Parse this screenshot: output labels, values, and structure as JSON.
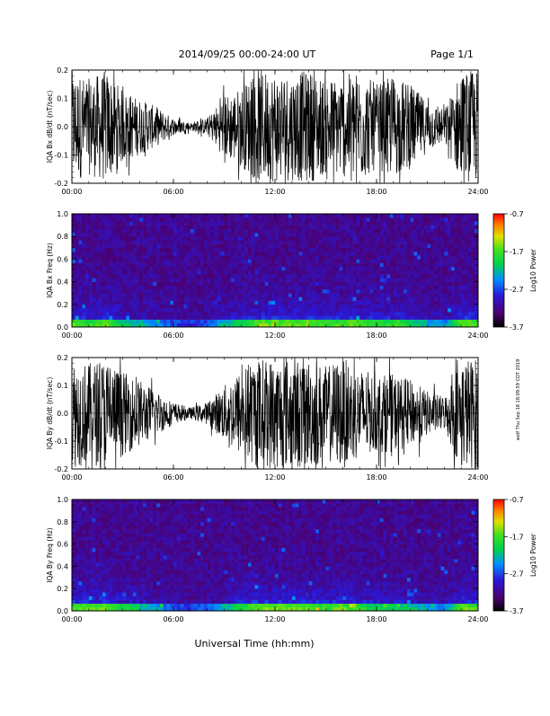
{
  "header": {
    "title": "2014/09/25  00:00-24:00 UT",
    "page": "Page 1/1"
  },
  "side_note": "wolf Thu Sep 18 18:09:59 CDT 2019",
  "xlabel": "Universal Time (hh:mm)",
  "chart_data": [
    {
      "type": "line",
      "ylabel": "IQA Bx dB/dt (nT/sec)",
      "xlim": [
        0,
        24
      ],
      "ylim": [
        -0.2,
        0.2
      ],
      "xticks": [
        "00:00",
        "06:00",
        "12:00",
        "18:00",
        "24:00"
      ],
      "yticks": [
        "-0.2",
        "-0.1",
        "0.0",
        "0.1",
        "0.2"
      ],
      "series": [
        {
          "x": [
            0,
            1,
            2,
            3,
            4,
            5,
            6,
            7,
            8,
            9,
            10,
            11,
            12,
            13,
            14,
            15,
            16,
            17,
            18,
            19,
            20,
            21,
            22,
            23,
            24
          ],
          "amplitude": [
            0.2,
            0.17,
            0.2,
            0.13,
            0.1,
            0.07,
            0.03,
            0.015,
            0.03,
            0.11,
            0.14,
            0.2,
            0.2,
            0.19,
            0.2,
            0.17,
            0.18,
            0.2,
            0.15,
            0.18,
            0.15,
            0.09,
            0.06,
            0.2,
            0.2
          ]
        }
      ]
    },
    {
      "type": "heatmap",
      "ylabel": "IQA Bx Freq (Hz)",
      "xlim": [
        0,
        24
      ],
      "ylim": [
        0,
        1.0
      ],
      "xticks": [
        "00:00",
        "06:00",
        "12:00",
        "18:00",
        "24:00"
      ],
      "yticks": [
        "0.0",
        "0.2",
        "0.4",
        "0.6",
        "0.8",
        "1.0"
      ],
      "colorbar": {
        "label": "Log10 Power",
        "ticks": [
          "-0.7",
          "-1.7",
          "-2.7",
          "-3.7"
        ],
        "range": [
          -3.7,
          -0.7
        ]
      }
    },
    {
      "type": "line",
      "ylabel": "IQA By dB/dt (nT/sec)",
      "xlim": [
        0,
        24
      ],
      "ylim": [
        -0.2,
        0.2
      ],
      "xticks": [
        "00:00",
        "06:00",
        "12:00",
        "18:00",
        "24:00"
      ],
      "yticks": [
        "-0.2",
        "-0.1",
        "0.0",
        "0.1",
        "0.2"
      ],
      "series": [
        {
          "x": [
            0,
            1,
            2,
            3,
            4,
            5,
            6,
            7,
            8,
            9,
            10,
            11,
            12,
            13,
            14,
            15,
            16,
            17,
            18,
            19,
            20,
            21,
            22,
            23,
            24
          ],
          "amplitude": [
            0.2,
            0.18,
            0.2,
            0.15,
            0.12,
            0.08,
            0.04,
            0.02,
            0.04,
            0.1,
            0.16,
            0.2,
            0.2,
            0.2,
            0.2,
            0.17,
            0.2,
            0.16,
            0.14,
            0.14,
            0.12,
            0.08,
            0.06,
            0.2,
            0.2
          ]
        }
      ]
    },
    {
      "type": "heatmap",
      "ylabel": "IQA By Freq (Hz)",
      "xlim": [
        0,
        24
      ],
      "ylim": [
        0,
        1.0
      ],
      "xticks": [
        "00:00",
        "06:00",
        "12:00",
        "18:00",
        "24:00"
      ],
      "yticks": [
        "0.0",
        "0.2",
        "0.4",
        "0.6",
        "0.8",
        "1.0"
      ],
      "colorbar": {
        "label": "Log10 Power",
        "ticks": [
          "-0.7",
          "-1.7",
          "-2.7",
          "-3.7"
        ],
        "range": [
          -3.7,
          -0.7
        ]
      }
    }
  ]
}
